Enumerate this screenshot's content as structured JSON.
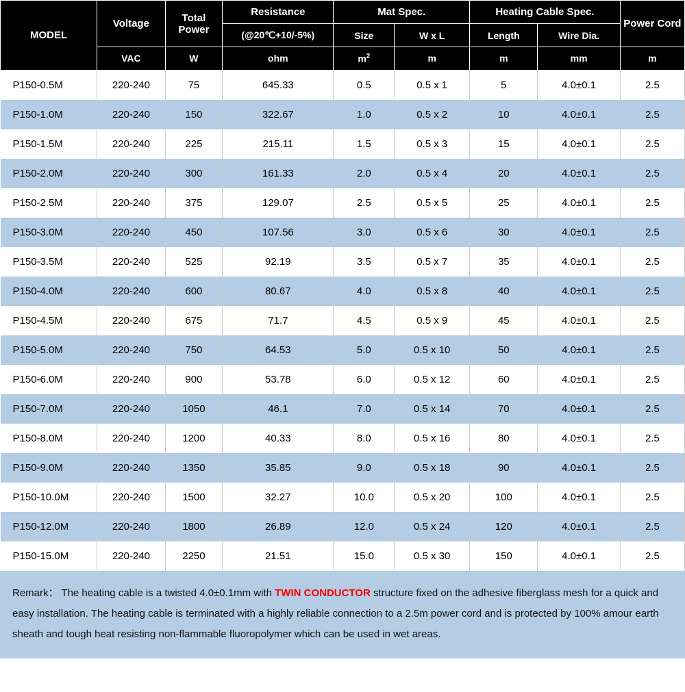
{
  "table": {
    "type": "table",
    "header_bg": "#000000",
    "header_fg": "#ffffff",
    "row_odd_bg": "#ffffff",
    "row_even_bg": "#b4cce4",
    "border_color": "#cccccc",
    "font_family": "Arial",
    "body_fontsize": 15,
    "header_fontsize": 15,
    "columns": [
      {
        "key": "model",
        "group": "MODEL",
        "sub": "",
        "unit": "",
        "width_pct": 13.5,
        "align": "left"
      },
      {
        "key": "voltage",
        "group": "Voltage",
        "sub": "",
        "unit": "VAC",
        "width_pct": 9.5,
        "align": "center"
      },
      {
        "key": "power",
        "group": "Total Power",
        "sub": "",
        "unit": "W",
        "width_pct": 8.0,
        "align": "center"
      },
      {
        "key": "res",
        "group": "Resistance",
        "sub": "(@20℃+10/-5%)",
        "unit": "ohm",
        "width_pct": 15.5,
        "align": "center"
      },
      {
        "key": "size",
        "group": "Mat Spec.",
        "sub": "Size",
        "unit": "m²",
        "width_pct": 8.5,
        "align": "center"
      },
      {
        "key": "wxl",
        "group": "Mat Spec.",
        "sub": "W x L",
        "unit": "m",
        "width_pct": 10.5,
        "align": "center"
      },
      {
        "key": "length",
        "group": "Heating Cable Spec.",
        "sub": "Length",
        "unit": "m",
        "width_pct": 9.5,
        "align": "center"
      },
      {
        "key": "wdia",
        "group": "Heating Cable Spec.",
        "sub": "Wire Dia.",
        "unit": "mm",
        "width_pct": 11.5,
        "align": "center"
      },
      {
        "key": "pcord",
        "group": "Power Cord",
        "sub": "",
        "unit": "m",
        "width_pct": 9.0,
        "align": "center"
      }
    ],
    "header": {
      "model": "MODEL",
      "voltage": "Voltage",
      "total_power": "Total Power",
      "resistance": "Resistance",
      "resistance_sub": "(@20℃+10/-5%)",
      "mat_spec": "Mat Spec.",
      "mat_size": "Size",
      "mat_wxl": "W x L",
      "cable_spec": "Heating Cable Spec.",
      "cable_length": "Length",
      "cable_wdia": "Wire Dia.",
      "power_cord": "Power Cord",
      "units": {
        "voltage": "VAC",
        "power": "W",
        "res": "ohm",
        "size_html": "m<sup>2</sup>",
        "wxl": "m",
        "length": "m",
        "wdia": "mm",
        "pcord": "m"
      }
    },
    "rows": [
      {
        "model": "P150-0.5M",
        "voltage": "220-240",
        "power": "75",
        "res": "645.33",
        "size": "0.5",
        "wxl": "0.5 x 1",
        "length": "5",
        "wdia": "4.0±0.1",
        "pcord": "2.5"
      },
      {
        "model": "P150-1.0M",
        "voltage": "220-240",
        "power": "150",
        "res": "322.67",
        "size": "1.0",
        "wxl": "0.5 x 2",
        "length": "10",
        "wdia": "4.0±0.1",
        "pcord": "2.5"
      },
      {
        "model": "P150-1.5M",
        "voltage": "220-240",
        "power": "225",
        "res": "215.11",
        "size": "1.5",
        "wxl": "0.5 x 3",
        "length": "15",
        "wdia": "4.0±0.1",
        "pcord": "2.5"
      },
      {
        "model": "P150-2.0M",
        "voltage": "220-240",
        "power": "300",
        "res": "161.33",
        "size": "2.0",
        "wxl": "0.5 x 4",
        "length": "20",
        "wdia": "4.0±0.1",
        "pcord": "2.5"
      },
      {
        "model": "P150-2.5M",
        "voltage": "220-240",
        "power": "375",
        "res": "129.07",
        "size": "2.5",
        "wxl": "0.5 x 5",
        "length": "25",
        "wdia": "4.0±0.1",
        "pcord": "2.5"
      },
      {
        "model": "P150-3.0M",
        "voltage": "220-240",
        "power": "450",
        "res": "107.56",
        "size": "3.0",
        "wxl": "0.5 x 6",
        "length": "30",
        "wdia": "4.0±0.1",
        "pcord": "2.5"
      },
      {
        "model": "P150-3.5M",
        "voltage": "220-240",
        "power": "525",
        "res": "92.19",
        "size": "3.5",
        "wxl": "0.5 x 7",
        "length": "35",
        "wdia": "4.0±0.1",
        "pcord": "2.5"
      },
      {
        "model": "P150-4.0M",
        "voltage": "220-240",
        "power": "600",
        "res": "80.67",
        "size": "4.0",
        "wxl": "0.5 x 8",
        "length": "40",
        "wdia": "4.0±0.1",
        "pcord": "2.5"
      },
      {
        "model": "P150-4.5M",
        "voltage": "220-240",
        "power": "675",
        "res": "71.7",
        "size": "4.5",
        "wxl": "0.5 x 9",
        "length": "45",
        "wdia": "4.0±0.1",
        "pcord": "2.5"
      },
      {
        "model": "P150-5.0M",
        "voltage": "220-240",
        "power": "750",
        "res": "64.53",
        "size": "5.0",
        "wxl": "0.5 x 10",
        "length": "50",
        "wdia": "4.0±0.1",
        "pcord": "2.5"
      },
      {
        "model": "P150-6.0M",
        "voltage": "220-240",
        "power": "900",
        "res": "53.78",
        "size": "6.0",
        "wxl": "0.5 x 12",
        "length": "60",
        "wdia": "4.0±0.1",
        "pcord": "2.5"
      },
      {
        "model": "P150-7.0M",
        "voltage": "220-240",
        "power": "1050",
        "res": "46.1",
        "size": "7.0",
        "wxl": "0.5 x 14",
        "length": "70",
        "wdia": "4.0±0.1",
        "pcord": "2.5"
      },
      {
        "model": "P150-8.0M",
        "voltage": "220-240",
        "power": "1200",
        "res": "40.33",
        "size": "8.0",
        "wxl": "0.5 x 16",
        "length": "80",
        "wdia": "4.0±0.1",
        "pcord": "2.5"
      },
      {
        "model": "P150-9.0M",
        "voltage": "220-240",
        "power": "1350",
        "res": "35.85",
        "size": "9.0",
        "wxl": "0.5 x 18",
        "length": "90",
        "wdia": "4.0±0.1",
        "pcord": "2.5"
      },
      {
        "model": "P150-10.0M",
        "voltage": "220-240",
        "power": "1500",
        "res": "32.27",
        "size": "10.0",
        "wxl": "0.5 x 20",
        "length": "100",
        "wdia": "4.0±0.1",
        "pcord": "2.5"
      },
      {
        "model": "P150-12.0M",
        "voltage": "220-240",
        "power": "1800",
        "res": "26.89",
        "size": "12.0",
        "wxl": "0.5 x 24",
        "length": "120",
        "wdia": "4.0±0.1",
        "pcord": "2.5"
      },
      {
        "model": "P150-15.0M",
        "voltage": "220-240",
        "power": "2250",
        "res": "21.51",
        "size": "15.0",
        "wxl": "0.5 x 30",
        "length": "150",
        "wdia": "4.0±0.1",
        "pcord": "2.5"
      }
    ]
  },
  "remark": {
    "label": "Remark：",
    "highlight_text": "TWIN CONDUCTOR",
    "highlight_color": "#ff0000",
    "bg_color": "#b4cce4",
    "text_before": "The heating cable is a twisted 4.0±0.1mm with ",
    "text_after": " structure fixed on the adhesive fiberglass mesh for a quick and easy installation. The heating cable is terminated with a highly reliable connection to a 2.5m power cord and is protected by 100% amour earth sheath and tough heat resisting non-flammable fluoropolymer which can be used in wet areas."
  }
}
